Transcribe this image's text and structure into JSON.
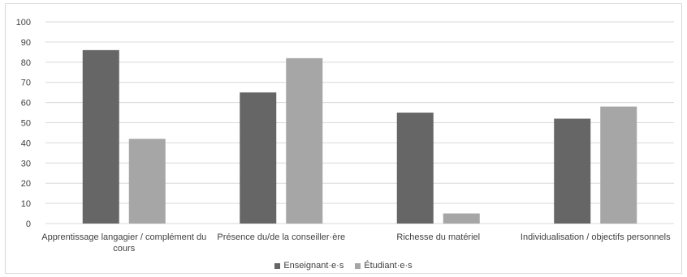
{
  "chart_data": {
    "type": "bar",
    "categories": [
      [
        "Apprentissage langagier / complément du",
        "cours"
      ],
      [
        "Présence du/de la conseiller·ère"
      ],
      [
        "Richesse du matériel"
      ],
      [
        "Individualisation / objectifs personnels"
      ]
    ],
    "series": [
      {
        "name": "Enseignant·e·s",
        "values": [
          86,
          65,
          55,
          52
        ],
        "color": "#666666"
      },
      {
        "name": "Étudiant·e·s",
        "values": [
          42,
          82,
          5,
          58
        ],
        "color": "#a6a6a6"
      }
    ],
    "ylim": [
      0,
      100
    ],
    "yticks": [
      0,
      10,
      20,
      30,
      40,
      50,
      60,
      70,
      80,
      90,
      100
    ],
    "grid": true,
    "legend_position": "bottom-center",
    "title": "",
    "xlabel": "",
    "ylabel": ""
  }
}
